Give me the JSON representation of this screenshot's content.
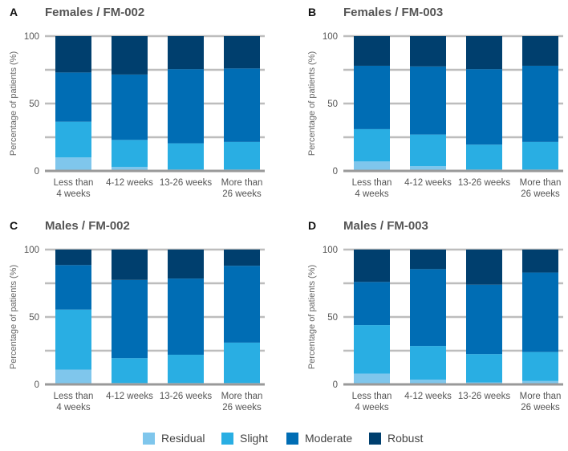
{
  "colors": {
    "Residual": "#7fc6ec",
    "Slight": "#29aee3",
    "Moderate": "#006db4",
    "Robust": "#003f6e"
  },
  "legend": {
    "items": [
      "Residual",
      "Slight",
      "Moderate",
      "Robust"
    ]
  },
  "chart_data": [
    {
      "type": "bar",
      "stacked": true,
      "letter": "A",
      "title": "Females / FM-002",
      "ylabel": "Percentage of patients (%)",
      "ylim": [
        0,
        100
      ],
      "yticks": [
        0,
        50,
        100
      ],
      "categories": [
        [
          "Less than",
          "4 weeks"
        ],
        [
          "4-12 weeks"
        ],
        [
          "13-26 weeks"
        ],
        [
          "More than",
          "26 weeks"
        ]
      ],
      "series": [
        {
          "name": "Residual",
          "values": [
            10,
            3,
            1,
            1
          ]
        },
        {
          "name": "Slight",
          "values": [
            26.5,
            20,
            19.5,
            20.5
          ]
        },
        {
          "name": "Moderate",
          "values": [
            36.5,
            48.5,
            55,
            54.5
          ]
        },
        {
          "name": "Robust",
          "values": [
            27,
            28.5,
            24.5,
            24
          ]
        }
      ]
    },
    {
      "type": "bar",
      "stacked": true,
      "letter": "B",
      "title": "Females / FM-003",
      "ylabel": "Percentage of patients (%)",
      "ylim": [
        0,
        100
      ],
      "yticks": [
        0,
        50,
        100
      ],
      "categories": [
        [
          "Less than",
          "4 weeks"
        ],
        [
          "4-12 weeks"
        ],
        [
          "13-26 weeks"
        ],
        [
          "More than",
          "26 weeks"
        ]
      ],
      "series": [
        {
          "name": "Residual",
          "values": [
            7,
            3.5,
            1,
            1
          ]
        },
        {
          "name": "Slight",
          "values": [
            24,
            23.5,
            18.5,
            20.5
          ]
        },
        {
          "name": "Moderate",
          "values": [
            47,
            50.5,
            56,
            56.5
          ]
        },
        {
          "name": "Robust",
          "values": [
            22,
            22.5,
            24.5,
            22
          ]
        }
      ]
    },
    {
      "type": "bar",
      "stacked": true,
      "letter": "C",
      "title": "Males / FM-002",
      "ylabel": "Percentage of patients (%)",
      "ylim": [
        0,
        100
      ],
      "yticks": [
        0,
        50,
        100
      ],
      "categories": [
        [
          "Less than",
          "4 weeks"
        ],
        [
          "4-12 weeks"
        ],
        [
          "13-26 weeks"
        ],
        [
          "More than",
          "26 weeks"
        ]
      ],
      "series": [
        {
          "name": "Residual",
          "values": [
            11,
            1,
            1,
            1
          ]
        },
        {
          "name": "Slight",
          "values": [
            44.5,
            18.5,
            21,
            30
          ]
        },
        {
          "name": "Moderate",
          "values": [
            33,
            58,
            56.5,
            57
          ]
        },
        {
          "name": "Robust",
          "values": [
            11.5,
            22.5,
            21.5,
            12
          ]
        }
      ]
    },
    {
      "type": "bar",
      "stacked": true,
      "letter": "D",
      "title": "Males / FM-003",
      "ylabel": "Percentage of patients (%)",
      "ylim": [
        0,
        100
      ],
      "yticks": [
        0,
        50,
        100
      ],
      "categories": [
        [
          "Less than",
          "4 weeks"
        ],
        [
          "4-12 weeks"
        ],
        [
          "13-26 weeks"
        ],
        [
          "More than",
          "26 weeks"
        ]
      ],
      "series": [
        {
          "name": "Residual",
          "values": [
            8,
            3.5,
            1.5,
            2.5
          ]
        },
        {
          "name": "Slight",
          "values": [
            36,
            25,
            21,
            21.5
          ]
        },
        {
          "name": "Moderate",
          "values": [
            32,
            57,
            51.5,
            59
          ]
        },
        {
          "name": "Robust",
          "values": [
            24,
            14.5,
            26,
            17
          ]
        }
      ]
    }
  ]
}
